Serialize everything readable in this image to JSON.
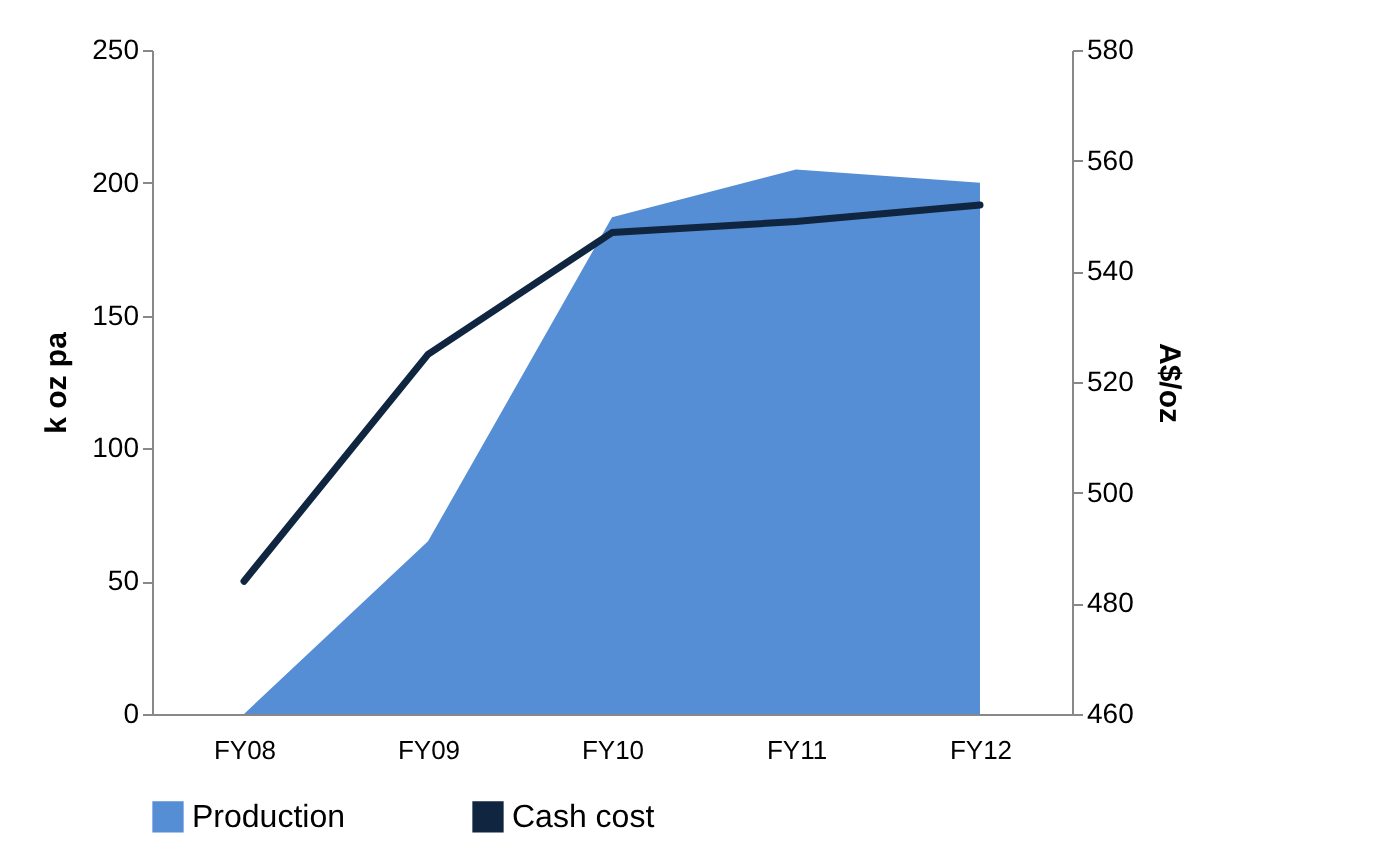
{
  "chart_data": {
    "type": "area",
    "categories": [
      "FY08",
      "FY09",
      "FY10",
      "FY11",
      "FY12"
    ],
    "series": [
      {
        "name": "Production",
        "type": "area",
        "color": "#558ed5",
        "values": [
          0,
          65,
          187,
          205,
          200
        ]
      },
      {
        "name": "Cash cost",
        "type": "line",
        "axis": "y2",
        "color": "#0f2540",
        "values": [
          484,
          525,
          547,
          549,
          552
        ]
      }
    ],
    "ylabel": "k oz pa",
    "y2label": "A$/oz",
    "ylim": [
      0,
      250
    ],
    "yticks": [
      0,
      50,
      100,
      150,
      200,
      250
    ],
    "y2lim": [
      460,
      580
    ],
    "y2ticks": [
      460,
      480,
      500,
      520,
      540,
      560,
      580
    ],
    "legend": "bottom"
  }
}
